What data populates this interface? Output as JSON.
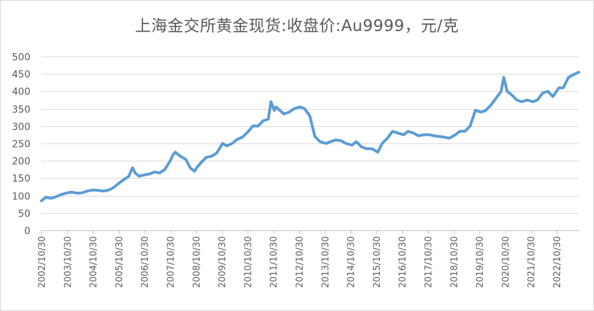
{
  "chart_data": {
    "type": "line",
    "title": "上海金交所黄金现货:收盘价:Au9999，元/克",
    "xlabel": "",
    "ylabel": "",
    "ylim": [
      0,
      500
    ],
    "yticks": [
      0,
      50,
      100,
      150,
      200,
      250,
      300,
      350,
      400,
      450,
      500
    ],
    "xtick_labels": [
      "2002/10/30",
      "2003/10/30",
      "2004/10/30",
      "2005/10/30",
      "2006/10/30",
      "2007/10/30",
      "2008/10/30",
      "2009/10/30",
      "2010/10/30",
      "2011/10/30",
      "2012/10/30",
      "2013/10/30",
      "2014/10/30",
      "2015/10/30",
      "2016/10/30",
      "2017/10/30",
      "2018/10/30",
      "2019/10/30",
      "2020/10/30",
      "2021/10/30",
      "2022/10/30"
    ],
    "xlim": [
      2002.83,
      2023.6
    ],
    "grid": true,
    "legend": "none",
    "series": [
      {
        "color": "#5b9bd5",
        "x": [
          2002.83,
          2003.0,
          2003.2,
          2003.4,
          2003.6,
          2003.83,
          2004.0,
          2004.2,
          2004.4,
          2004.6,
          2004.83,
          2005.0,
          2005.2,
          2005.4,
          2005.6,
          2005.83,
          2006.0,
          2006.2,
          2006.35,
          2006.45,
          2006.6,
          2006.83,
          2007.0,
          2007.2,
          2007.4,
          2007.6,
          2007.83,
          2007.9,
          2008.0,
          2008.2,
          2008.4,
          2008.6,
          2008.75,
          2008.83,
          2009.0,
          2009.2,
          2009.4,
          2009.6,
          2009.83,
          2010.0,
          2010.2,
          2010.4,
          2010.6,
          2010.83,
          2011.0,
          2011.2,
          2011.4,
          2011.6,
          2011.7,
          2011.83,
          2011.9,
          2012.0,
          2012.2,
          2012.4,
          2012.6,
          2012.83,
          2013.0,
          2013.2,
          2013.4,
          2013.6,
          2013.83,
          2014.0,
          2014.2,
          2014.4,
          2014.6,
          2014.83,
          2015.0,
          2015.2,
          2015.4,
          2015.6,
          2015.83,
          2016.0,
          2016.2,
          2016.4,
          2016.6,
          2016.83,
          2017.0,
          2017.2,
          2017.4,
          2017.6,
          2017.83,
          2018.0,
          2018.2,
          2018.4,
          2018.6,
          2018.83,
          2019.0,
          2019.2,
          2019.4,
          2019.6,
          2019.83,
          2020.0,
          2020.2,
          2020.4,
          2020.6,
          2020.7,
          2020.83,
          2021.0,
          2021.2,
          2021.4,
          2021.6,
          2021.83,
          2022.0,
          2022.2,
          2022.4,
          2022.6,
          2022.83,
          2023.0,
          2023.2,
          2023.4,
          2023.6
        ],
        "values": [
          85,
          95,
          92,
          97,
          103,
          108,
          110,
          107,
          108,
          113,
          116,
          115,
          113,
          115,
          122,
          136,
          145,
          155,
          180,
          165,
          156,
          160,
          162,
          168,
          165,
          175,
          203,
          215,
          225,
          213,
          205,
          178,
          170,
          180,
          195,
          210,
          213,
          222,
          250,
          243,
          250,
          262,
          268,
          285,
          300,
          300,
          315,
          320,
          370,
          345,
          355,
          348,
          335,
          340,
          350,
          355,
          350,
          330,
          270,
          255,
          250,
          255,
          260,
          258,
          250,
          245,
          255,
          240,
          235,
          235,
          225,
          250,
          265,
          285,
          280,
          275,
          285,
          280,
          272,
          275,
          275,
          272,
          270,
          268,
          265,
          275,
          285,
          285,
          300,
          345,
          340,
          345,
          360,
          380,
          400,
          440,
          400,
          390,
          375,
          370,
          375,
          370,
          375,
          395,
          400,
          385,
          410,
          410,
          440,
          448,
          455
        ]
      }
    ]
  }
}
